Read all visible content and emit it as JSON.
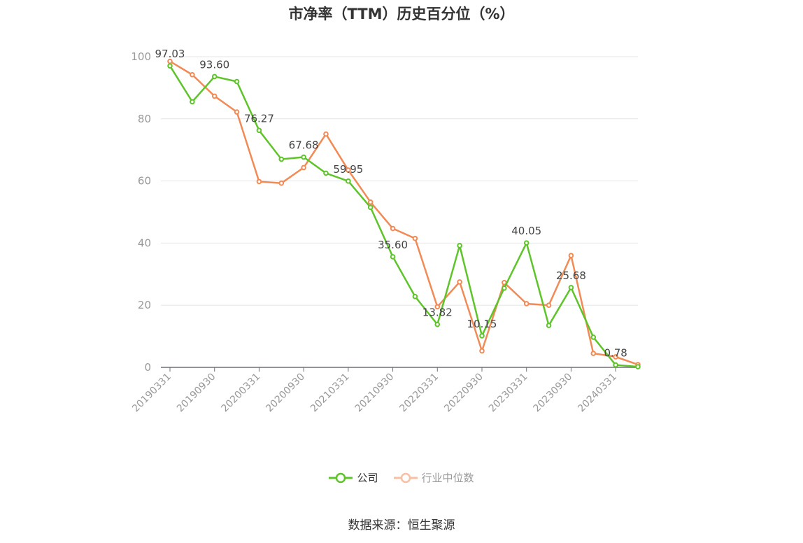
{
  "chart_data": {
    "type": "line",
    "title": "市净率（TTM）历史百分位（%）",
    "source": "数据来源：恒生聚源",
    "ylim": [
      0,
      100
    ],
    "yticks": [
      0,
      20,
      40,
      60,
      80,
      100
    ],
    "grid": true,
    "legend_position": "bottom",
    "x": [
      "20190331",
      "20190630",
      "20190930",
      "20191231",
      "20200331",
      "20200630",
      "20200930",
      "20201231",
      "20210331",
      "20210630",
      "20210930",
      "20211231",
      "20220331",
      "20220630",
      "20220930",
      "20221231",
      "20230331",
      "20230630",
      "20230930",
      "20231231",
      "20240331",
      "20240630"
    ],
    "x_tick_labels": [
      "20190331",
      "20190930",
      "20200331",
      "20200930",
      "20210331",
      "20210930",
      "20220331",
      "20220930",
      "20230331",
      "20230930",
      "20240331"
    ],
    "series": [
      {
        "name": "公司",
        "color": "#5ec42a",
        "values": [
          97.03,
          85.5,
          93.6,
          92.0,
          76.27,
          67.0,
          67.68,
          62.5,
          59.95,
          51.5,
          35.6,
          22.8,
          13.82,
          39.2,
          10.15,
          25.5,
          40.05,
          13.5,
          25.68,
          9.7,
          0.78,
          0.2
        ]
      },
      {
        "name": "行业中位数",
        "color": "#f28a55",
        "values": [
          98.5,
          94.2,
          87.3,
          82.2,
          59.8,
          59.3,
          64.3,
          75.1,
          63.5,
          53.2,
          44.7,
          41.5,
          19.5,
          27.5,
          5.3,
          27.3,
          20.5,
          20.0,
          36.0,
          4.5,
          3.4,
          0.9
        ]
      }
    ],
    "data_labels": [
      {
        "index": 0,
        "text": "97.03"
      },
      {
        "index": 2,
        "text": "93.60"
      },
      {
        "index": 4,
        "text": "76.27"
      },
      {
        "index": 6,
        "text": "67.68"
      },
      {
        "index": 8,
        "text": "59.95"
      },
      {
        "index": 10,
        "text": "35.60"
      },
      {
        "index": 12,
        "text": "13.82"
      },
      {
        "index": 14,
        "text": "10.15"
      },
      {
        "index": 16,
        "text": "40.05"
      },
      {
        "index": 18,
        "text": "25.68"
      },
      {
        "index": 20,
        "text": "0.78"
      }
    ]
  }
}
